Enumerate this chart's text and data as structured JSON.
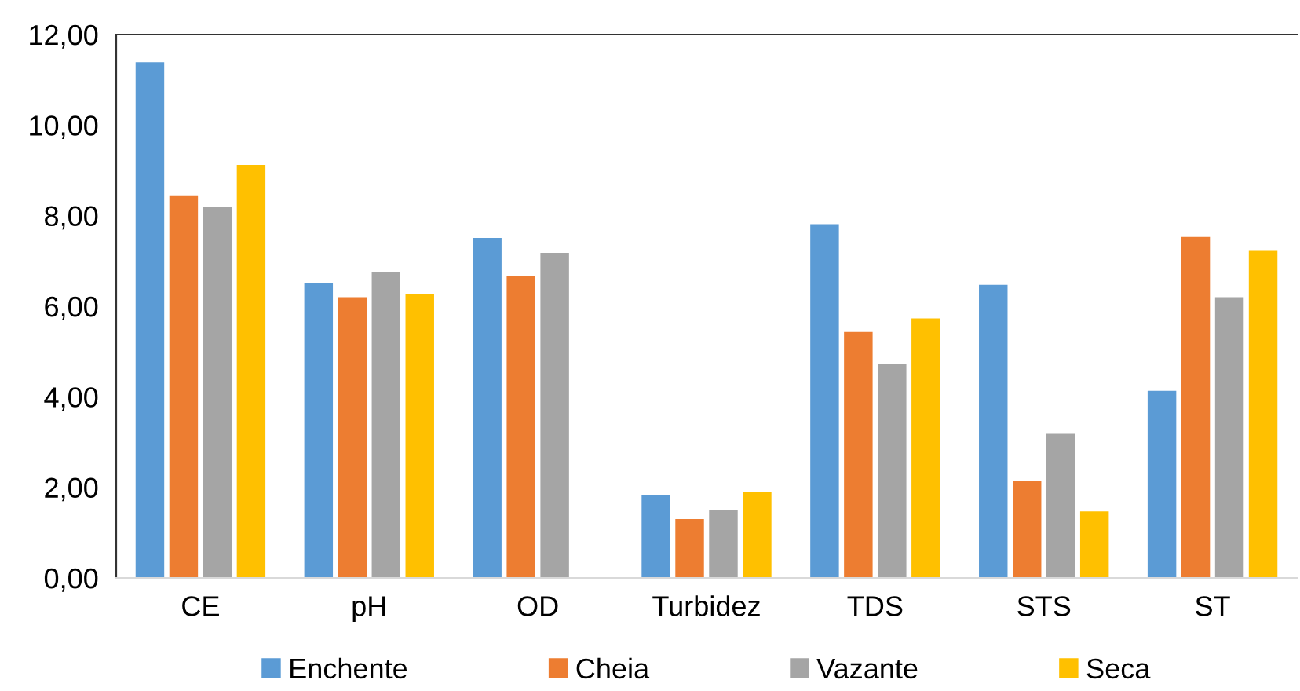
{
  "chart_data": {
    "type": "bar",
    "categories": [
      "CE",
      "pH",
      "OD",
      "Turbidez",
      "TDS",
      "STS",
      "ST"
    ],
    "series": [
      {
        "name": "Enchente",
        "color": "#5b9bd5",
        "values": [
          11.41,
          6.52,
          7.53,
          1.85,
          7.83,
          6.49,
          4.15
        ]
      },
      {
        "name": "Cheia",
        "color": "#ed7d31",
        "values": [
          8.47,
          6.22,
          6.69,
          1.32,
          5.45,
          2.17,
          7.55
        ]
      },
      {
        "name": "Vazante",
        "color": "#a5a5a5",
        "values": [
          8.22,
          6.77,
          7.2,
          1.53,
          4.74,
          3.2,
          6.22
        ]
      },
      {
        "name": "Seca",
        "color": "#ffc000",
        "values": [
          9.14,
          6.29,
          null,
          1.92,
          5.75,
          1.49,
          7.24
        ]
      }
    ],
    "ylim": [
      0,
      12
    ],
    "yticks": [
      {
        "value": 0,
        "label": "0,00"
      },
      {
        "value": 2,
        "label": "2,00"
      },
      {
        "value": 4,
        "label": "4,00"
      },
      {
        "value": 6,
        "label": "6,00"
      },
      {
        "value": 8,
        "label": "8,00"
      },
      {
        "value": 10,
        "label": "10,00"
      },
      {
        "value": 12,
        "label": "12,00"
      }
    ],
    "grid": false,
    "legend": "bottom"
  }
}
